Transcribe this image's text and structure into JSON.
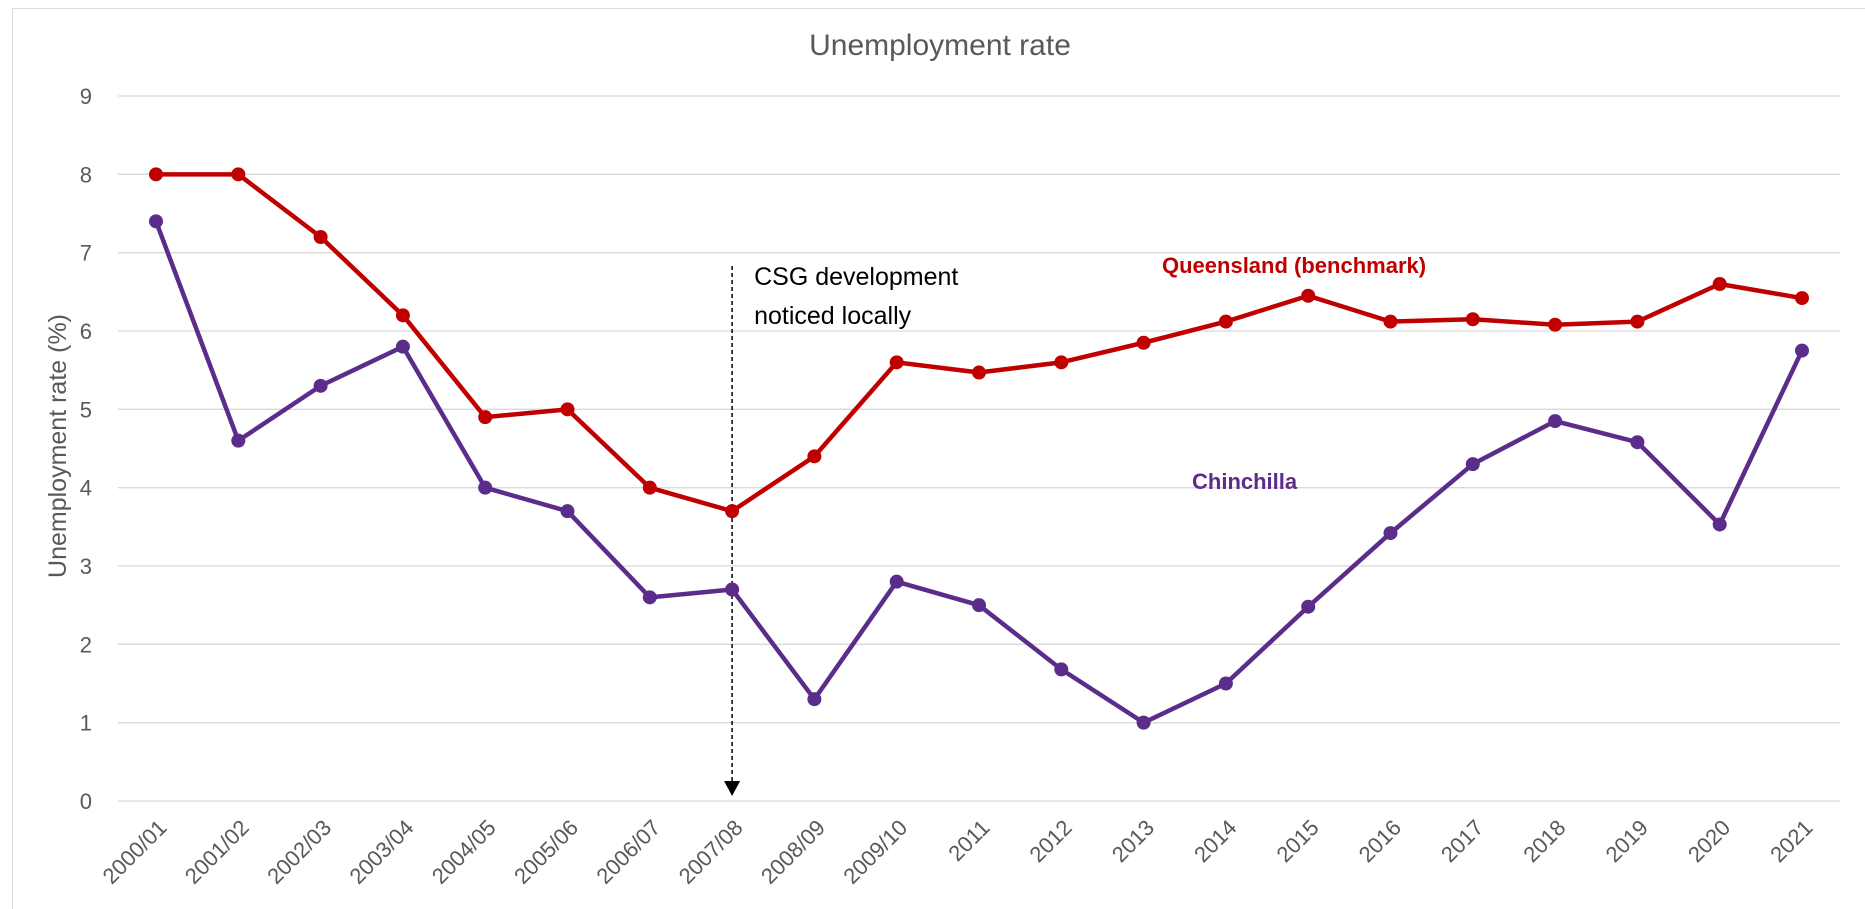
{
  "chart_data": {
    "type": "line",
    "title": "Unemployment rate",
    "ylabel": "Unemployment rate (%)",
    "xlabel": "",
    "ylim": [
      0,
      9
    ],
    "yticks": [
      "0",
      "1",
      "2",
      "3",
      "4",
      "5",
      "6",
      "7",
      "8",
      "9"
    ],
    "grid": true,
    "categories": [
      "2000/01",
      "2001/02",
      "2002/03",
      "2003/04",
      "2004/05",
      "2005/06",
      "2006/07",
      "2007/08",
      "2008/09",
      "2009/10",
      "2011",
      "2012",
      "2013",
      "2014",
      "2015",
      "2016",
      "2017",
      "2018",
      "2019",
      "2020",
      "2021"
    ],
    "series": [
      {
        "name": "Queensland (benchmark)",
        "color": "#c00000",
        "values": [
          8.0,
          8.0,
          7.2,
          6.2,
          4.9,
          5.0,
          4.0,
          3.7,
          4.4,
          5.6,
          5.47,
          5.6,
          5.85,
          6.12,
          6.45,
          6.12,
          6.15,
          6.08,
          6.12,
          6.6,
          6.42
        ]
      },
      {
        "name": "Chinchilla",
        "color": "#5b2c8a",
        "values": [
          7.4,
          4.6,
          5.3,
          5.8,
          4.0,
          3.7,
          2.6,
          2.7,
          1.3,
          2.8,
          2.5,
          1.68,
          1.0,
          1.5,
          2.48,
          3.42,
          4.3,
          4.85,
          4.58,
          3.53,
          5.75
        ]
      }
    ],
    "annotation": {
      "line1": "CSG development",
      "line2": "noticed locally",
      "category": "2007/08"
    }
  }
}
